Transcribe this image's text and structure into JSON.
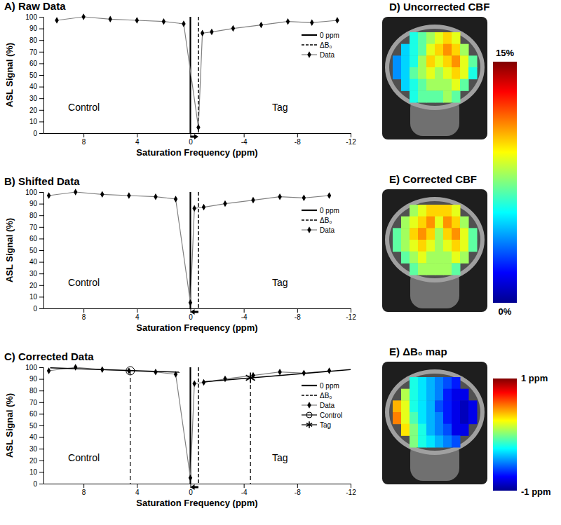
{
  "chart_data": [
    {
      "type": "line",
      "title": "A) Raw Data",
      "x_label": "Saturation Frequency (ppm)",
      "y_label": "ASL Signal (%)",
      "xlim": [
        11,
        -12
      ],
      "xticks": [
        8,
        4,
        0,
        -4,
        -8,
        -12
      ],
      "ylim": [
        0,
        100
      ],
      "yticks": [
        0,
        10,
        20,
        30,
        40,
        50,
        60,
        70,
        80,
        90,
        100
      ],
      "legend": "right",
      "annotations": [
        "Control",
        "Tag"
      ],
      "vlines": [
        {
          "name": "0 ppm",
          "value": 0,
          "line_style": "solid",
          "color": "#000000"
        },
        {
          "name": "ΔB₀",
          "value": -0.6,
          "line_style": "dashed",
          "color": "#000000"
        }
      ],
      "series": [
        {
          "name": "Data",
          "color": "#808080",
          "marker": "diamond",
          "x": [
            10,
            8,
            6,
            4,
            2,
            0.5,
            -0.6,
            -0.9,
            -1.6,
            -3.2,
            -5.3,
            -7.3,
            -9.1,
            -11
          ],
          "values": [
            97,
            100,
            98,
            97,
            96,
            94,
            5,
            86,
            87,
            90,
            93,
            96,
            95,
            97
          ]
        }
      ]
    },
    {
      "type": "line",
      "title": "B) Shifted Data",
      "x_label": "Saturation Frequency (ppm)",
      "y_label": "ASL Signal (%)",
      "xlim": [
        11,
        -12
      ],
      "xticks": [
        8,
        4,
        0,
        -4,
        -8,
        -12
      ],
      "ylim": [
        0,
        100
      ],
      "yticks": [
        0,
        10,
        20,
        30,
        40,
        50,
        60,
        70,
        80,
        90,
        100
      ],
      "legend": "right",
      "annotations": [
        "Control",
        "Tag"
      ],
      "vlines": [
        {
          "name": "0 ppm",
          "value": 0,
          "line_style": "solid",
          "color": "#000000"
        },
        {
          "name": "ΔB₀",
          "value": -0.6,
          "line_style": "dashed",
          "color": "#000000"
        }
      ],
      "series": [
        {
          "name": "Data",
          "color": "#808080",
          "marker": "diamond",
          "x": [
            10.6,
            8.6,
            6.6,
            4.6,
            2.6,
            1.1,
            0,
            -0.3,
            -1,
            -2.6,
            -4.7,
            -6.7,
            -8.5,
            -10.4
          ],
          "values": [
            97,
            100,
            98,
            97,
            96,
            94,
            5,
            86,
            87,
            90,
            93,
            96,
            95,
            97
          ]
        }
      ]
    },
    {
      "type": "line",
      "title": "C) Corrected Data",
      "x_label": "Saturation Frequency (ppm)",
      "y_label": "ASL Signal (%)",
      "xlim": [
        11,
        -12
      ],
      "xticks": [
        8,
        4,
        0,
        -4,
        -8,
        -12
      ],
      "ylim": [
        0,
        100
      ],
      "yticks": [
        0,
        10,
        20,
        30,
        40,
        50,
        60,
        70,
        80,
        90,
        100
      ],
      "legend": "right",
      "annotations": [
        "Control",
        "Tag"
      ],
      "vlines": [
        {
          "name": "0 ppm",
          "value": 0,
          "line_style": "solid",
          "color": "#000000"
        },
        {
          "name": "ΔB₀",
          "value": -0.6,
          "line_style": "dashed",
          "color": "#000000"
        }
      ],
      "series": [
        {
          "name": "Data",
          "color": "#808080",
          "marker": "diamond",
          "x": [
            10.6,
            8.6,
            6.6,
            4.6,
            2.6,
            1.1,
            0,
            -0.3,
            -1,
            -2.6,
            -4.7,
            -6.7,
            -8.5,
            -10.4
          ],
          "values": [
            97,
            100,
            98,
            97,
            96,
            94,
            5,
            86,
            87,
            90,
            93,
            96,
            95,
            97
          ]
        },
        {
          "name": "Control",
          "type": "fit",
          "color": "#000000",
          "marker": "circle",
          "x": [
            10.5,
            0.8
          ],
          "values": [
            99.5,
            95.8
          ],
          "sample": {
            "x": 4.5,
            "value": 97
          }
        },
        {
          "name": "Tag",
          "type": "fit",
          "color": "#000000",
          "marker": "asterisk",
          "x": [
            -1,
            -12
          ],
          "values": [
            87.5,
            98
          ],
          "sample": {
            "x": -4.5,
            "value": 91
          }
        }
      ]
    },
    {
      "type": "heatmap",
      "title": "D) Uncorrected CBF",
      "zlim": [
        0,
        15
      ],
      "zticks": [
        {
          "value": 15,
          "label": "15%"
        },
        {
          "value": 0,
          "label": "0%"
        }
      ],
      "cells": [
        [
          null,
          null,
          6,
          7,
          8,
          9,
          10,
          9,
          null,
          null
        ],
        [
          null,
          5,
          6,
          7,
          9,
          10,
          11,
          10,
          8,
          null
        ],
        [
          4,
          5,
          6,
          8,
          10,
          9,
          10,
          11,
          9,
          7
        ],
        [
          4,
          5,
          7,
          8,
          9,
          8,
          9,
          10,
          9,
          6
        ],
        [
          null,
          5,
          6,
          7,
          8,
          8,
          8,
          9,
          7,
          null
        ],
        [
          null,
          null,
          6,
          7,
          7,
          7,
          8,
          7,
          null,
          null
        ]
      ]
    },
    {
      "type": "heatmap",
      "title": "E) Corrected CBF",
      "zlim": [
        0,
        15
      ],
      "cells": [
        [
          null,
          null,
          8,
          9,
          10,
          10,
          10,
          9,
          null,
          null
        ],
        [
          null,
          8,
          9,
          10,
          11,
          9,
          11,
          10,
          8,
          null
        ],
        [
          7,
          8,
          10,
          11,
          10,
          8,
          10,
          11,
          9,
          7
        ],
        [
          7,
          8,
          9,
          10,
          9,
          8,
          9,
          10,
          9,
          7
        ],
        [
          null,
          7,
          8,
          9,
          8,
          8,
          8,
          9,
          8,
          null
        ],
        [
          null,
          null,
          7,
          8,
          8,
          8,
          8,
          7,
          null,
          null
        ]
      ]
    },
    {
      "type": "heatmap",
      "title": "E) ΔB₀ map",
      "zlim": [
        -1,
        1
      ],
      "zticks": [
        {
          "value": 1,
          "label": "1 ppm"
        },
        {
          "value": -1,
          "label": "-1 ppm"
        }
      ],
      "cells": [
        [
          null,
          null,
          -0.2,
          -0.3,
          -0.4,
          -0.5,
          -0.6,
          -0.7,
          null,
          null
        ],
        [
          null,
          0.1,
          -0.2,
          -0.3,
          -0.4,
          -0.5,
          -0.7,
          -0.8,
          -0.8,
          null
        ],
        [
          0.4,
          0.2,
          -0.2,
          -0.3,
          -0.4,
          -0.6,
          -0.7,
          -0.8,
          -0.9,
          -0.8
        ],
        [
          0.5,
          0.2,
          -0.1,
          -0.3,
          -0.4,
          -0.5,
          -0.7,
          -0.8,
          -0.9,
          -0.8
        ],
        [
          null,
          0.3,
          0,
          -0.2,
          -0.4,
          -0.5,
          -0.6,
          -0.8,
          -0.8,
          null
        ],
        [
          null,
          null,
          0,
          -0.2,
          -0.3,
          -0.4,
          -0.5,
          -0.6,
          null,
          null
        ]
      ]
    }
  ]
}
